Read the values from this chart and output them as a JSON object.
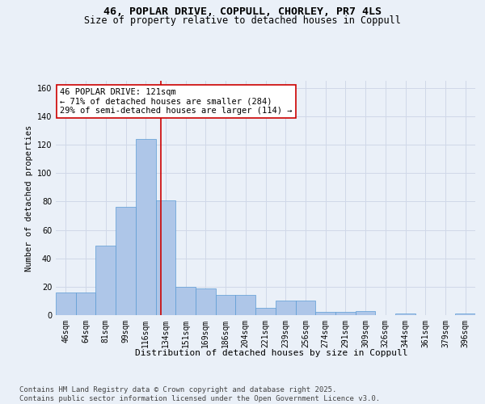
{
  "title_line1": "46, POPLAR DRIVE, COPPULL, CHORLEY, PR7 4LS",
  "title_line2": "Size of property relative to detached houses in Coppull",
  "xlabel": "Distribution of detached houses by size in Coppull",
  "ylabel": "Number of detached properties",
  "categories": [
    "46sqm",
    "64sqm",
    "81sqm",
    "99sqm",
    "116sqm",
    "134sqm",
    "151sqm",
    "169sqm",
    "186sqm",
    "204sqm",
    "221sqm",
    "239sqm",
    "256sqm",
    "274sqm",
    "291sqm",
    "309sqm",
    "326sqm",
    "344sqm",
    "361sqm",
    "379sqm",
    "396sqm"
  ],
  "values": [
    16,
    16,
    49,
    76,
    124,
    81,
    20,
    19,
    14,
    14,
    5,
    10,
    10,
    2,
    2,
    3,
    0,
    1,
    0,
    0,
    1
  ],
  "bar_color": "#aec6e8",
  "bar_edge_color": "#5b9bd5",
  "grid_color": "#d0d8e8",
  "background_color": "#eaf0f8",
  "annotation_box_text": "46 POPLAR DRIVE: 121sqm\n← 71% of detached houses are smaller (284)\n29% of semi-detached houses are larger (114) →",
  "annotation_box_color": "#ffffff",
  "annotation_box_edge": "#cc0000",
  "red_line_x": 4.78,
  "ylim": [
    0,
    165
  ],
  "yticks": [
    0,
    20,
    40,
    60,
    80,
    100,
    120,
    140,
    160
  ],
  "footer_text": "Contains HM Land Registry data © Crown copyright and database right 2025.\nContains public sector information licensed under the Open Government Licence v3.0.",
  "title_fontsize": 9.5,
  "subtitle_fontsize": 8.5,
  "axis_label_fontsize": 8,
  "tick_fontsize": 7,
  "annot_fontsize": 7.5,
  "footer_fontsize": 6.5,
  "ylabel_fontsize": 7.5
}
